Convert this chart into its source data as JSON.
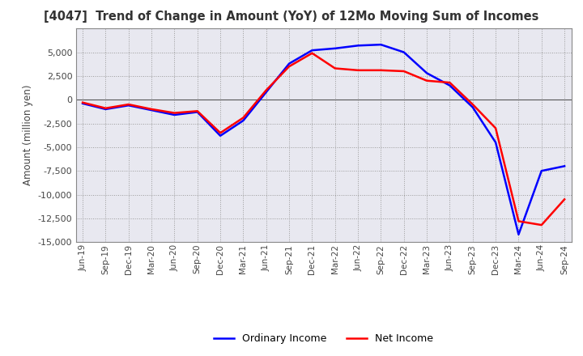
{
  "title": "[4047]  Trend of Change in Amount (YoY) of 12Mo Moving Sum of Incomes",
  "ylabel": "Amount (million yen)",
  "ylim": [
    -15000,
    7500
  ],
  "yticks": [
    -15000,
    -12500,
    -10000,
    -7500,
    -5000,
    -2500,
    0,
    2500,
    5000
  ],
  "background_color": "#ffffff",
  "plot_background": "#e8e8f0",
  "grid_color": "#999999",
  "ordinary_income_color": "#0000ff",
  "net_income_color": "#ff0000",
  "line_width": 1.8,
  "x_labels": [
    "Jun-19",
    "Sep-19",
    "Dec-19",
    "Mar-20",
    "Jun-20",
    "Sep-20",
    "Dec-20",
    "Mar-21",
    "Jun-21",
    "Sep-21",
    "Dec-21",
    "Mar-22",
    "Jun-22",
    "Sep-22",
    "Dec-22",
    "Mar-23",
    "Jun-23",
    "Sep-23",
    "Dec-23",
    "Mar-24",
    "Jun-24",
    "Sep-24"
  ],
  "ordinary_income": [
    -400,
    -1000,
    -600,
    -1100,
    -1600,
    -1300,
    -3800,
    -2200,
    800,
    3800,
    5200,
    5400,
    5700,
    5800,
    5000,
    2800,
    1500,
    -800,
    -4500,
    -14200,
    -7500,
    -7000
  ],
  "net_income": [
    -300,
    -900,
    -500,
    -1000,
    -1400,
    -1200,
    -3500,
    -1900,
    1000,
    3500,
    4900,
    3300,
    3100,
    3100,
    3000,
    2000,
    1800,
    -500,
    -3000,
    -12800,
    -13200,
    -10500
  ]
}
